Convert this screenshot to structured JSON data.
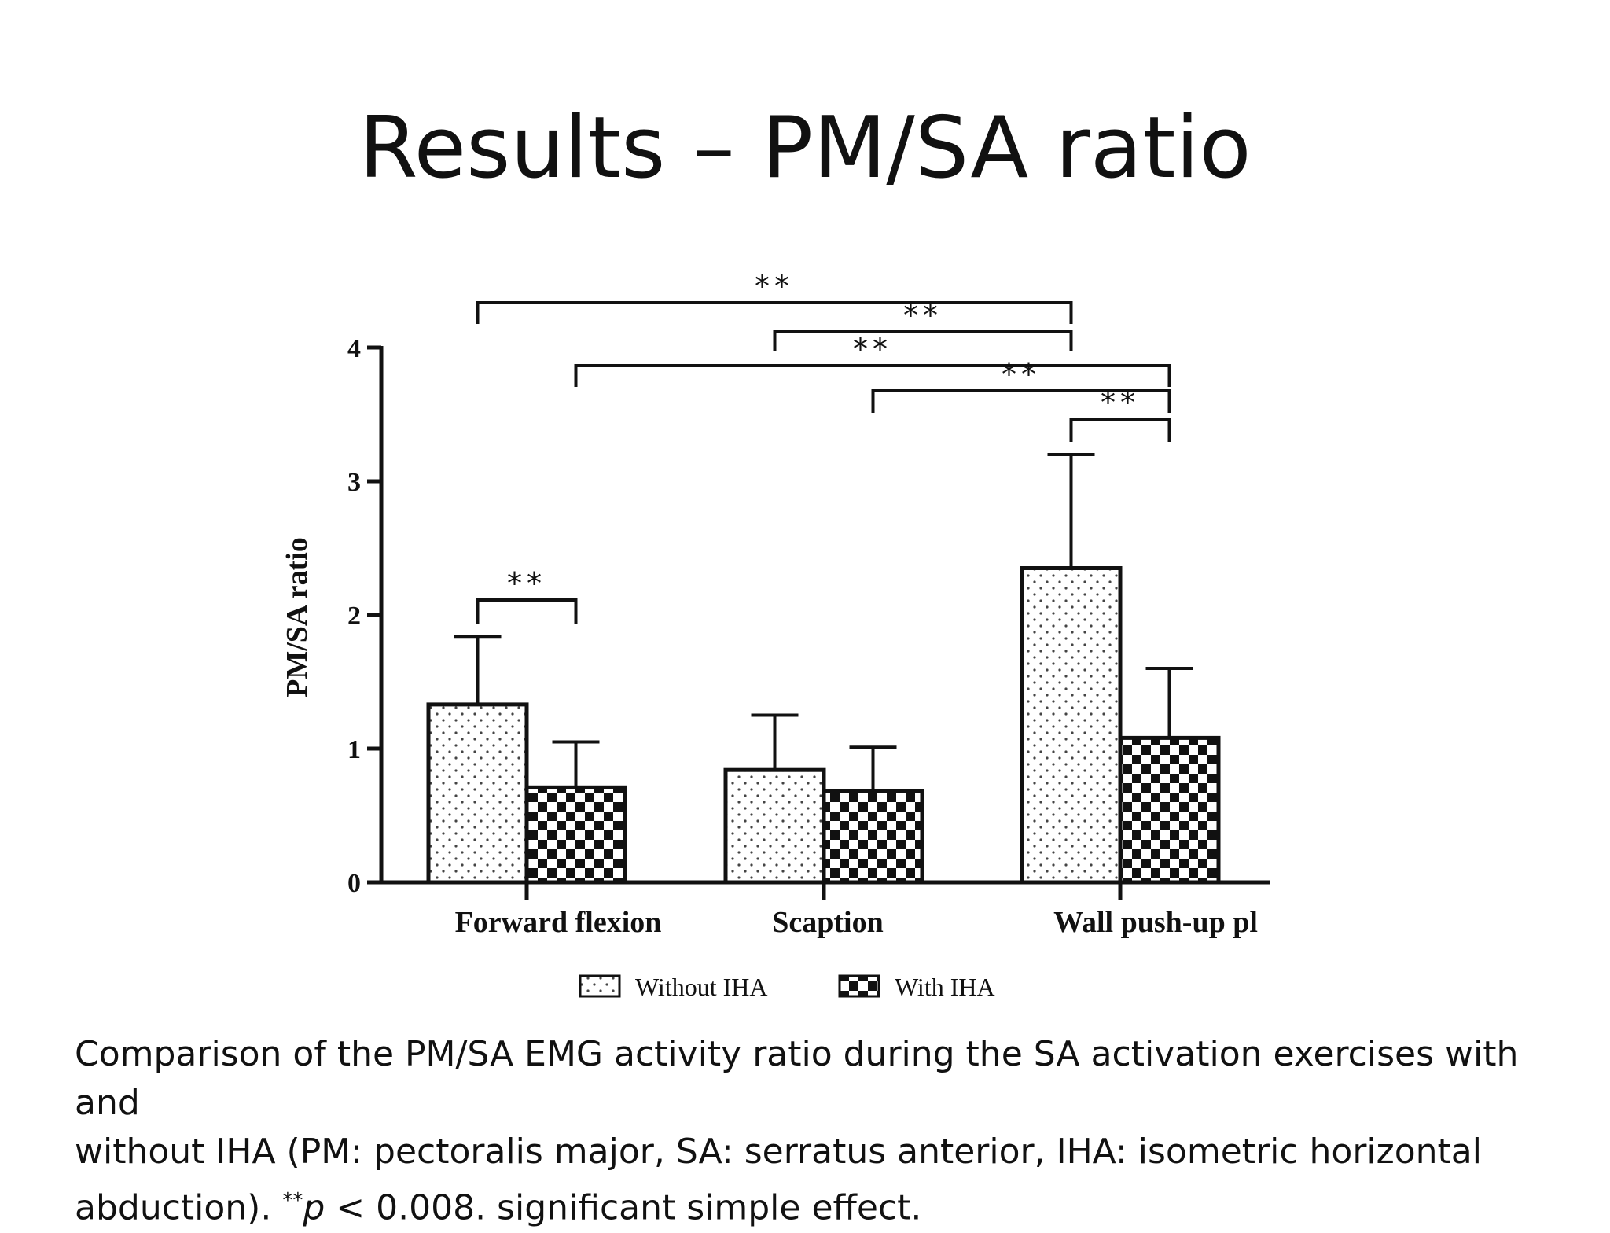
{
  "slide": {
    "title": "Results – PM/SA ratio",
    "caption_line1": "Comparison of the PM/SA EMG activity ratio during the SA activation exercises with and",
    "caption_line2": "without IHA (PM: pectoralis major, SA: serratus anterior, IHA: isometric horizontal",
    "caption_line3_a": "abduction). ",
    "caption_stars": "**",
    "caption_p": "p",
    "caption_line3_b": " < 0.008. significant simple effect."
  },
  "chart_data": {
    "type": "bar",
    "title": "",
    "xlabel": "",
    "ylabel": "PM/SA ratio",
    "ylim": [
      0,
      4
    ],
    "yticks": [
      "0",
      "1",
      "2",
      "3",
      "4"
    ],
    "categories": [
      "Forward flexion",
      "Scaption",
      "Wall push-up pl"
    ],
    "series": [
      {
        "name": "Without IHA",
        "pattern": "dots",
        "values": [
          1.33,
          0.84,
          2.35
        ],
        "errors": [
          0.51,
          0.41,
          0.85
        ]
      },
      {
        "name": "With IHA",
        "pattern": "checker",
        "values": [
          0.71,
          0.68,
          1.08
        ],
        "errors": [
          0.34,
          0.33,
          0.52
        ]
      }
    ],
    "legend_position": "bottom",
    "significance_label": "**",
    "significance_brackets": [
      {
        "from": [
          0,
          0
        ],
        "to": [
          2,
          0
        ],
        "label": "**"
      },
      {
        "from": [
          1,
          0
        ],
        "to": [
          2,
          0
        ],
        "label": "**"
      },
      {
        "from": [
          0,
          1
        ],
        "to": [
          2,
          1
        ],
        "label": "**"
      },
      {
        "from": [
          1,
          1
        ],
        "to": [
          2,
          1
        ],
        "label": "**"
      },
      {
        "from": [
          2,
          0
        ],
        "to": [
          2,
          1
        ],
        "label": "**"
      },
      {
        "from": [
          0,
          0
        ],
        "to": [
          0,
          1
        ],
        "label": "**"
      }
    ],
    "colors": {
      "axis": "#111111",
      "bar_fill": "#ffffff",
      "pattern": "#111111"
    }
  }
}
